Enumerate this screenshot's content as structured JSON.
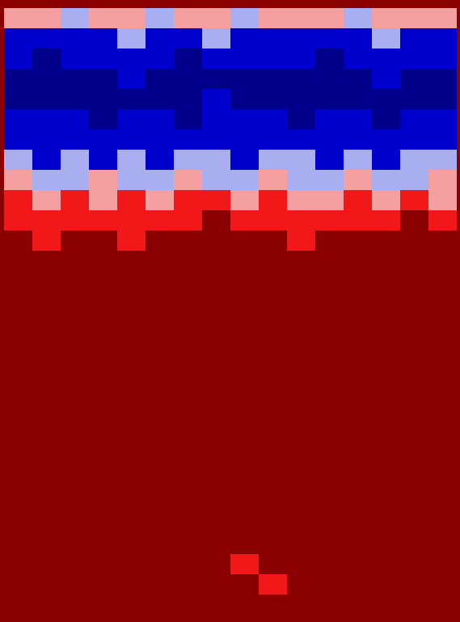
{
  "chart_data": {
    "type": "heatmap",
    "tick_labels": false,
    "levels": [
      -2,
      -1,
      0,
      1,
      2
    ],
    "colors": [
      "#00008b",
      "#0000cc",
      "#a8aef0",
      "#f4a0a0",
      "#f01818",
      "#8b0000"
    ],
    "cells": [
      [
        0.4,
        0.6,
        -0.3,
        0.5,
        0.2,
        -0.4,
        0.7,
        0.3,
        -0.2,
        0.5,
        0.1,
        0.6,
        -0.5,
        0.3,
        0.4,
        0.2
      ],
      [
        -1.3,
        -1.1,
        -1.6,
        -1.2,
        -1.0,
        -1.5,
        -1.3,
        -0.8,
        -1.4,
        -1.2,
        -1.1,
        -1.6,
        -1.3,
        -0.9,
        -1.2,
        -1.4
      ],
      [
        -1.9,
        -2.1,
        -1.8,
        -1.7,
        -2.0,
        -1.9,
        -2.2,
        -1.6,
        -1.9,
        -2.0,
        -1.8,
        -2.1,
        -1.9,
        -1.7,
        -2.0,
        -1.8
      ],
      [
        -2.3,
        -2.1,
        -2.4,
        -2.2,
        -2.0,
        -2.3,
        -2.5,
        -2.1,
        -2.2,
        -2.4,
        -2.3,
        -2.1,
        -2.2,
        -2.0,
        -2.3,
        -2.4
      ],
      [
        -2.1,
        -2.3,
        -2.2,
        -2.4,
        -2.1,
        -2.2,
        -2.3,
        -2.0,
        -2.4,
        -2.2,
        -2.1,
        -2.3,
        -2.5,
        -2.1,
        -2.2,
        -2.3
      ],
      [
        -1.9,
        -2.0,
        -1.7,
        -2.1,
        -1.8,
        -1.9,
        -2.2,
        -1.8,
        -2.0,
        -1.9,
        -2.1,
        -1.7,
        -2.0,
        -2.2,
        -1.9,
        -2.0
      ],
      [
        -1.4,
        -1.7,
        -1.5,
        -1.3,
        -1.6,
        -1.8,
        -1.4,
        -1.2,
        -1.6,
        -1.5,
        -1.7,
        -1.4,
        -1.5,
        -1.6,
        -1.3,
        -1.7
      ],
      [
        -0.8,
        -1.1,
        -0.6,
        -1.2,
        -0.9,
        -1.3,
        -0.7,
        -1.0,
        -1.2,
        -0.5,
        -0.9,
        -1.1,
        -0.8,
        -1.2,
        -0.7,
        -1.0
      ],
      [
        0.3,
        -0.5,
        -0.2,
        0.4,
        -0.6,
        -0.3,
        0.2,
        -0.4,
        -0.1,
        0.5,
        -0.3,
        -0.6,
        0.3,
        -0.2,
        -0.4,
        0.1
      ],
      [
        1.1,
        0.6,
        1.3,
        0.8,
        1.2,
        0.4,
        1.0,
        1.4,
        0.7,
        1.2,
        0.9,
        0.5,
        1.1,
        0.8,
        1.3,
        0.9
      ],
      [
        1.7,
        1.4,
        1.9,
        1.6,
        1.3,
        1.8,
        1.5,
        2.1,
        1.6,
        1.9,
        1.4,
        1.7,
        1.8,
        1.5,
        2.0,
        1.6
      ],
      [
        2.2,
        1.9,
        2.4,
        2.1,
        1.8,
        2.3,
        2.0,
        2.5,
        2.2,
        2.3,
        1.9,
        2.1,
        2.4,
        2.0,
        2.3,
        2.2
      ],
      [
        2.6,
        2.4,
        2.7,
        2.5,
        2.3,
        2.6,
        2.4,
        2.8,
        2.5,
        2.7,
        2.3,
        2.6,
        2.5,
        2.4,
        2.7,
        2.6
      ],
      [
        2.8,
        2.7,
        2.9,
        2.8,
        2.6,
        2.8,
        2.7,
        2.9,
        2.8,
        2.9,
        2.7,
        2.8,
        2.8,
        2.7,
        2.9,
        2.8
      ],
      [
        2.9,
        2.8,
        2.9,
        2.9,
        2.8,
        2.9,
        2.8,
        3.0,
        2.9,
        2.9,
        2.8,
        2.9,
        2.9,
        2.8,
        2.9,
        2.9
      ],
      [
        2.9,
        2.9,
        3.0,
        2.9,
        2.9,
        2.8,
        2.9,
        3.0,
        2.9,
        3.0,
        2.9,
        2.9,
        3.0,
        2.9,
        2.9,
        3.0
      ],
      [
        3.0,
        2.9,
        3.0,
        3.0,
        2.9,
        3.0,
        2.9,
        3.0,
        3.0,
        3.0,
        2.9,
        3.0,
        3.0,
        2.9,
        3.0,
        3.0
      ],
      [
        3.0,
        3.0,
        3.0,
        3.0,
        3.0,
        3.0,
        3.0,
        3.0,
        3.0,
        3.0,
        3.0,
        3.0,
        3.0,
        3.0,
        3.0,
        3.0
      ],
      [
        3.0,
        3.0,
        3.0,
        3.0,
        3.0,
        3.0,
        3.0,
        3.0,
        3.0,
        3.0,
        3.0,
        3.0,
        3.0,
        3.0,
        3.0,
        3.0
      ],
      [
        3.0,
        3.0,
        3.0,
        3.0,
        3.0,
        3.0,
        3.0,
        3.0,
        3.0,
        3.0,
        3.0,
        3.0,
        3.0,
        3.0,
        3.0,
        3.0
      ],
      [
        3.0,
        3.0,
        3.0,
        3.0,
        3.0,
        3.0,
        3.0,
        3.0,
        3.0,
        3.0,
        3.0,
        3.0,
        3.0,
        3.0,
        3.0,
        3.0
      ],
      [
        3.0,
        3.0,
        3.0,
        3.0,
        3.0,
        3.0,
        3.0,
        3.0,
        3.0,
        3.0,
        3.0,
        3.0,
        3.0,
        3.0,
        3.0,
        3.0
      ],
      [
        3.0,
        3.0,
        3.0,
        3.0,
        3.0,
        3.0,
        3.0,
        3.0,
        3.0,
        3.0,
        3.0,
        3.0,
        3.0,
        3.0,
        3.0,
        3.0
      ],
      [
        3.0,
        3.0,
        3.0,
        3.0,
        3.0,
        3.0,
        3.0,
        3.0,
        3.0,
        3.0,
        3.0,
        3.0,
        3.0,
        3.0,
        3.0,
        3.0
      ],
      [
        3.0,
        3.0,
        3.0,
        3.0,
        3.0,
        3.0,
        3.0,
        3.0,
        3.0,
        3.0,
        3.0,
        3.0,
        3.0,
        3.0,
        3.0,
        3.0
      ],
      [
        3.0,
        3.0,
        3.0,
        3.0,
        3.0,
        3.0,
        3.0,
        3.0,
        3.0,
        3.0,
        3.0,
        3.0,
        3.0,
        3.0,
        3.0,
        3.0
      ],
      [
        3.0,
        3.0,
        3.0,
        3.0,
        3.0,
        3.0,
        3.0,
        3.0,
        3.0,
        3.0,
        3.0,
        3.0,
        3.0,
        3.0,
        3.0,
        3.0
      ],
      [
        3.0,
        3.0,
        3.0,
        3.0,
        3.0,
        3.0,
        3.0,
        3.0,
        1.8,
        3.0,
        3.0,
        3.0,
        3.0,
        3.0,
        3.0,
        3.0
      ],
      [
        3.0,
        3.0,
        3.0,
        3.0,
        3.0,
        3.0,
        3.0,
        3.0,
        3.0,
        1.8,
        3.0,
        3.0,
        3.0,
        3.0,
        3.0,
        3.0
      ],
      [
        3.0,
        3.0,
        3.0,
        3.0,
        3.0,
        3.0,
        3.0,
        3.0,
        3.0,
        3.0,
        3.0,
        3.0,
        3.0,
        3.0,
        3.0,
        3.0
      ]
    ]
  }
}
